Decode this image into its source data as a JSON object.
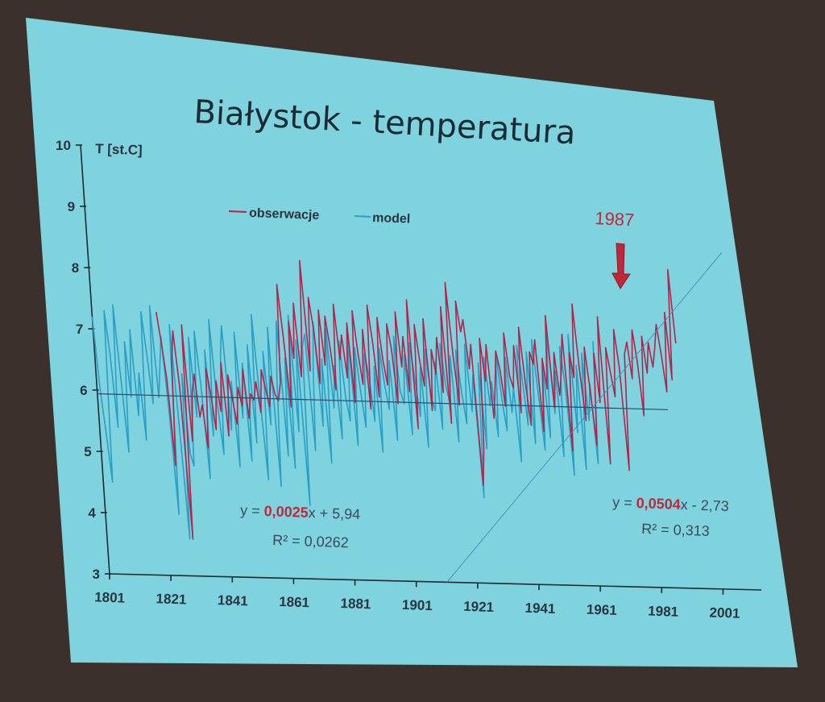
{
  "chart_data": {
    "type": "line",
    "title": "Białystok - temperatura",
    "ylabel": "T [st.C]",
    "xlabel": "",
    "xlim": [
      1801,
      2016
    ],
    "ylim": [
      3,
      10
    ],
    "x_ticks": [
      1801,
      1821,
      1841,
      1861,
      1881,
      1901,
      1921,
      1941,
      1961,
      1981,
      2001
    ],
    "y_ticks": [
      3,
      4,
      5,
      6,
      7,
      8,
      9,
      10
    ],
    "legend": {
      "placement": "top-center",
      "entries": [
        "obserwacje",
        "model"
      ]
    },
    "series": [
      {
        "name": "model",
        "color": "#2a9ec4",
        "x_start": 1801,
        "values": [
          7.2,
          6.0,
          5.3,
          4.5,
          7.3,
          6.6,
          5.4,
          7.4,
          6.2,
          5.0,
          6.8,
          5.9,
          7.0,
          5.6,
          6.3,
          5.2,
          7.3,
          6.6,
          5.8,
          7.4,
          5.9,
          6.4,
          6.9,
          5.7,
          4.0,
          7.1,
          5.5,
          3.6,
          6.3,
          5.0,
          4.8,
          6.9,
          5.6,
          7.0,
          6.1,
          4.6,
          6.7,
          5.3,
          7.2,
          5.8,
          5.0,
          6.6,
          7.1,
          5.4,
          6.2,
          4.8,
          7.0,
          5.6,
          6.5,
          4.9,
          6.8,
          5.2,
          7.3,
          5.9,
          4.6,
          6.7,
          5.5,
          7.1,
          4.5,
          6.3,
          7.2,
          5.0,
          6.6,
          4.8,
          7.3,
          5.4,
          6.9,
          4.2,
          6.8,
          7.0,
          5.1,
          6.4,
          7.2,
          5.5,
          6.6,
          4.9,
          7.1,
          5.8,
          6.5,
          5.3,
          6.9,
          6.0,
          5.6,
          7.0,
          5.2,
          6.8,
          6.1,
          5.5,
          6.7,
          6.4,
          5.6,
          6.5,
          5.1,
          6.8,
          6.2,
          5.8,
          6.6,
          5.3,
          7.0,
          6.1,
          5.9,
          6.7,
          5.4,
          6.9,
          6.3,
          5.7,
          6.5,
          5.2,
          6.8,
          6.0,
          5.8,
          6.6,
          5.5,
          6.9,
          6.2,
          5.9,
          6.7,
          5.3,
          6.8,
          6.1,
          5.6,
          6.9,
          5.8,
          6.4,
          4.4,
          6.6,
          5.2,
          6.7,
          5.9,
          6.3,
          5.4,
          6.8,
          6.0,
          5.5,
          6.7,
          5.8,
          6.2,
          5.0,
          6.9,
          6.4,
          5.6,
          6.8,
          5.3,
          7.0,
          6.1,
          5.2,
          6.6,
          5.4,
          7.2,
          5.8,
          6.5,
          5.1,
          6.9,
          6.2,
          4.8,
          7.1,
          5.5,
          6.6,
          4.9,
          6.8,
          5.7,
          6.3,
          5.0,
          7.0
        ]
      },
      {
        "name": "obserwacje",
        "color": "#b3244a",
        "x_start": 1822,
        "values": [
          7.3,
          6.8,
          6.2,
          4.8,
          6.5,
          7.0,
          6.1,
          3.6,
          7.1,
          5.2,
          6.0,
          6.3,
          5.6,
          5.8,
          5.1,
          6.4,
          6.0,
          5.4,
          6.2,
          5.7,
          6.5,
          5.3,
          6.3,
          5.9,
          5.5,
          6.1,
          5.8,
          6.4,
          5.6,
          6.0,
          5.9,
          6.2,
          5.7,
          6.4,
          6.1,
          5.8,
          6.3,
          6.0,
          5.9,
          6.2,
          7.8,
          6.9,
          5.8,
          7.2,
          6.6,
          7.5,
          6.3,
          7.0,
          8.2,
          6.4,
          7.6,
          7.1,
          6.2,
          7.4,
          6.5,
          7.3,
          6.8,
          6.1,
          7.5,
          6.6,
          7.0,
          6.3,
          7.2,
          5.9,
          7.4,
          6.7,
          6.2,
          7.1,
          5.8,
          7.5,
          6.9,
          6.0,
          7.3,
          6.6,
          6.2,
          7.2,
          6.8,
          5.9,
          7.4,
          6.5,
          7.0,
          6.1,
          7.6,
          5.5,
          7.2,
          6.6,
          6.2,
          7.3,
          5.8,
          6.8,
          6.4,
          7.0,
          6.1,
          7.5,
          5.6,
          7.9,
          6.7,
          5.9,
          7.6,
          7.1,
          7.3,
          6.5,
          6.9,
          4.6,
          5.2,
          7.0,
          6.3,
          6.9,
          5.7,
          6.2,
          6.8,
          6.5,
          5.9,
          7.1,
          6.4,
          6.2,
          6.9,
          5.8,
          7.2,
          6.3,
          5.6,
          6.8,
          6.6,
          7.0,
          5.5,
          6.7,
          6.2,
          7.4,
          5.9,
          6.8,
          6.1,
          6.5,
          7.1,
          5.2,
          6.8,
          6.4,
          7.6,
          6.5,
          5.7,
          6.9,
          6.2,
          5.3,
          6.8,
          6.0,
          7.4,
          5.0,
          6.9,
          6.5,
          6.1,
          7.2,
          6.6,
          4.9,
          6.8,
          7.0,
          6.4,
          7.2,
          6.7,
          5.8,
          7.1,
          6.5,
          7.0,
          6.6,
          6.9,
          7.3,
          6.8,
          6.2,
          7.5,
          6.4,
          8.2,
          7.0
        ]
      }
    ],
    "trendlines": [
      {
        "x": [
          1801,
          1987
        ],
        "y": [
          5.94,
          5.91
        ]
      },
      {
        "x": [
          1911,
          2008
        ],
        "y": [
          3.0,
          8.5
        ]
      }
    ],
    "annotations": {
      "eq1_prefix": "y = ",
      "eq1_coef": "0,0025",
      "eq1_suffix": "x + 5,94",
      "eq1_r2": "R² = 0,0262",
      "eq2_prefix": "y = ",
      "eq2_coef": "0,0504",
      "eq2_suffix": "x - 2,73",
      "eq2_r2": "R² = 0,313",
      "arrow_label": "1987",
      "arrow_x": 1987
    }
  },
  "colors": {
    "slide_bg": "#7ed3df",
    "frame_bg": "#3b302b",
    "observations": "#b3244a",
    "model": "#2a9ec4",
    "accent_red": "#c0273a"
  }
}
